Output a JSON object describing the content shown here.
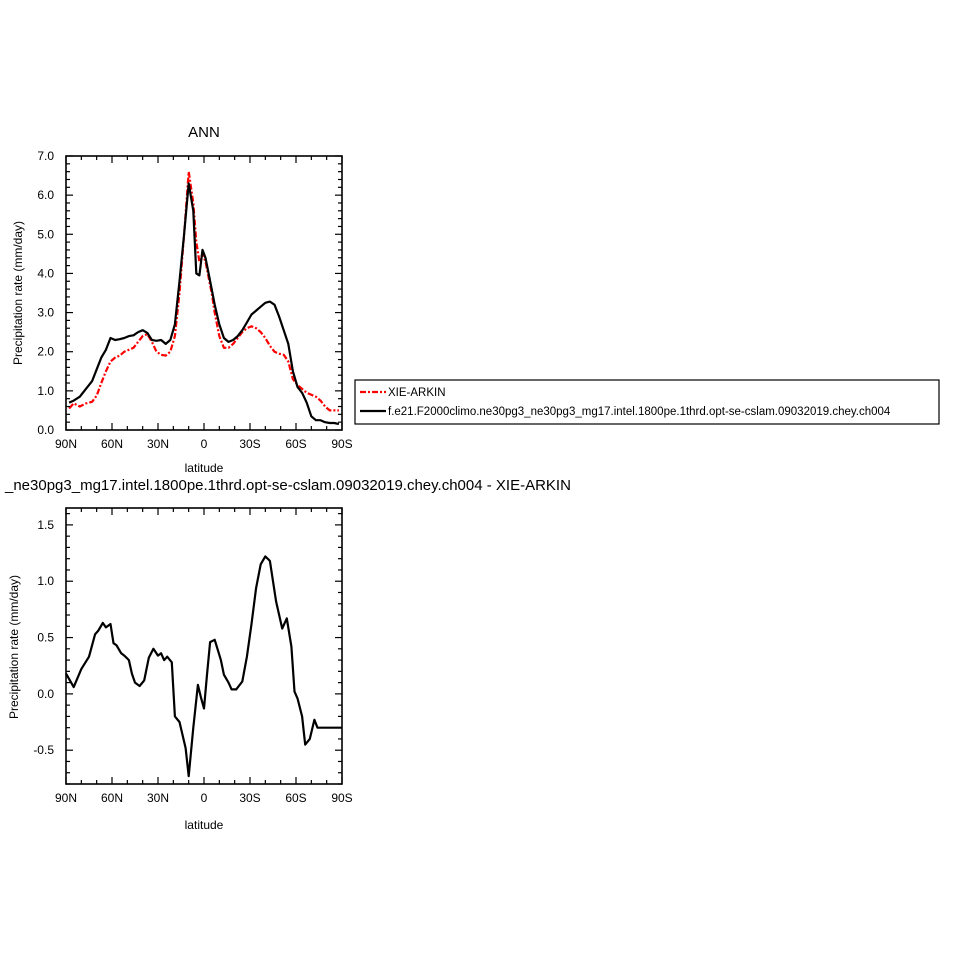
{
  "chart_data": [
    {
      "type": "line",
      "title": "ANN",
      "xlabel": "latitude",
      "ylabel": "Precipitation rate (mm/day)",
      "xlim": [
        90,
        -90
      ],
      "ylim": [
        0,
        7
      ],
      "xticks": [
        90,
        60,
        30,
        0,
        -30,
        -60,
        -90
      ],
      "xtick_labels": [
        "90N",
        "60N",
        "30N",
        "0",
        "30S",
        "60S",
        "90S"
      ],
      "yticks": [
        0,
        1,
        2,
        3,
        4,
        5,
        6,
        7
      ],
      "ytick_labels": [
        "0.0",
        "1.0",
        "2.0",
        "3.0",
        "4.0",
        "5.0",
        "6.0",
        "7.0"
      ],
      "grid": false,
      "legend_placement": "right",
      "series": [
        {
          "name": "XIE-ARKIN",
          "color": "#ff0000",
          "dash": "dash-dot",
          "x": [
            88,
            85,
            81,
            77,
            73,
            70,
            67,
            64,
            61,
            58,
            55,
            52,
            49,
            46,
            43,
            40,
            37,
            34,
            31,
            28,
            25,
            22,
            19,
            16,
            13,
            10,
            7,
            5,
            3,
            1,
            -1,
            -3,
            -5,
            -7,
            -10,
            -13,
            -16,
            -19,
            -22,
            -25,
            -28,
            -31,
            -34,
            -37,
            -40,
            -43,
            -46,
            -49,
            -52,
            -55,
            -58,
            -61,
            -64,
            -67,
            -70,
            -73,
            -76,
            -79,
            -82,
            -85,
            -88
          ],
          "y": [
            0.55,
            0.68,
            0.6,
            0.68,
            0.72,
            0.88,
            1.2,
            1.5,
            1.75,
            1.85,
            1.9,
            2.0,
            2.05,
            2.1,
            2.25,
            2.4,
            2.45,
            2.25,
            2.0,
            1.92,
            1.9,
            2.0,
            2.4,
            3.5,
            5.0,
            6.6,
            5.8,
            4.8,
            4.3,
            4.5,
            4.3,
            3.9,
            3.5,
            3.0,
            2.4,
            2.1,
            2.1,
            2.2,
            2.35,
            2.5,
            2.6,
            2.65,
            2.6,
            2.5,
            2.35,
            2.15,
            2.0,
            1.95,
            1.92,
            1.75,
            1.3,
            1.15,
            1.05,
            0.95,
            0.9,
            0.85,
            0.75,
            0.6,
            0.5,
            0.5,
            0.5
          ]
        },
        {
          "name": "f.e21.F2000climo.ne30pg3_ne30pg3_mg17.intel.1800pe.1thrd.opt-se-cslam.09032019.chey.ch004",
          "color": "#000000",
          "dash": "solid",
          "x": [
            88,
            85,
            81,
            77,
            73,
            70,
            67,
            64,
            61,
            58,
            55,
            52,
            49,
            46,
            43,
            40,
            37,
            34,
            31,
            28,
            25,
            22,
            19,
            16,
            13,
            10,
            7,
            5,
            3,
            1,
            -1,
            -3,
            -5,
            -7,
            -10,
            -13,
            -16,
            -19,
            -22,
            -25,
            -28,
            -31,
            -34,
            -37,
            -40,
            -43,
            -46,
            -49,
            -52,
            -55,
            -58,
            -61,
            -64,
            -67,
            -70,
            -73,
            -76,
            -79,
            -82,
            -85,
            -88
          ],
          "y": [
            0.7,
            0.75,
            0.85,
            1.05,
            1.25,
            1.55,
            1.85,
            2.05,
            2.35,
            2.3,
            2.32,
            2.35,
            2.4,
            2.42,
            2.5,
            2.55,
            2.48,
            2.3,
            2.28,
            2.3,
            2.2,
            2.3,
            2.7,
            3.8,
            5.0,
            6.3,
            5.6,
            4.0,
            3.95,
            4.6,
            4.4,
            4.0,
            3.6,
            3.2,
            2.7,
            2.35,
            2.25,
            2.3,
            2.4,
            2.55,
            2.75,
            2.95,
            3.05,
            3.15,
            3.25,
            3.28,
            3.2,
            2.9,
            2.55,
            2.2,
            1.5,
            1.1,
            0.95,
            0.7,
            0.35,
            0.25,
            0.25,
            0.2,
            0.18,
            0.18,
            0.15
          ]
        }
      ]
    },
    {
      "type": "line",
      "title": "_ne30pg3_mg17.intel.1800pe.1thrd.opt-se-cslam.09032019.chey.ch004 - XIE-ARKIN",
      "xlabel": "latitude",
      "ylabel": "Precipitation rate (mm/day)",
      "xlim": [
        90,
        -90
      ],
      "ylim": [
        -0.8,
        1.65
      ],
      "xticks": [
        90,
        60,
        30,
        0,
        -30,
        -60,
        -90
      ],
      "xtick_labels": [
        "90N",
        "60N",
        "30N",
        "0",
        "30S",
        "60S",
        "90S"
      ],
      "yticks": [
        -0.5,
        0,
        0.5,
        1.0,
        1.5
      ],
      "ytick_labels": [
        "-0.5",
        "0.0",
        "0.5",
        "1.0",
        "1.5"
      ],
      "grid": false,
      "series": [
        {
          "color": "#000000",
          "x": [
            90,
            85,
            80,
            75,
            71,
            69,
            66,
            64,
            61,
            59,
            57,
            54,
            52,
            49,
            47,
            45,
            42,
            39,
            36,
            33,
            30,
            28,
            26,
            24,
            21,
            19,
            16,
            12,
            10,
            7,
            4,
            2,
            0,
            -2,
            -4,
            -7,
            -11,
            -13,
            -16,
            -18,
            -21,
            -25,
            -28,
            -31,
            -34,
            -37,
            -40,
            -43,
            -47,
            -51,
            -54,
            -57,
            -59,
            -61,
            -64,
            -66,
            -69,
            -72,
            -74,
            -77,
            -79,
            -82,
            -84,
            -87,
            -90
          ],
          "y": [
            0.18,
            0.06,
            0.22,
            0.33,
            0.53,
            0.56,
            0.63,
            0.59,
            0.62,
            0.45,
            0.43,
            0.36,
            0.34,
            0.3,
            0.18,
            0.1,
            0.07,
            0.12,
            0.32,
            0.4,
            0.34,
            0.36,
            0.3,
            0.33,
            0.28,
            -0.2,
            -0.25,
            -0.48,
            -0.73,
            -0.3,
            0.08,
            -0.03,
            -0.13,
            0.18,
            0.46,
            0.48,
            0.3,
            0.17,
            0.1,
            0.04,
            0.04,
            0.11,
            0.33,
            0.62,
            0.94,
            1.15,
            1.22,
            1.18,
            0.82,
            0.58,
            0.67,
            0.42,
            0.02,
            -0.04,
            -0.2,
            -0.45,
            -0.4,
            -0.23,
            -0.3,
            -0.3,
            -0.3,
            -0.3,
            -0.3,
            -0.3,
            -0.3
          ]
        }
      ]
    }
  ]
}
